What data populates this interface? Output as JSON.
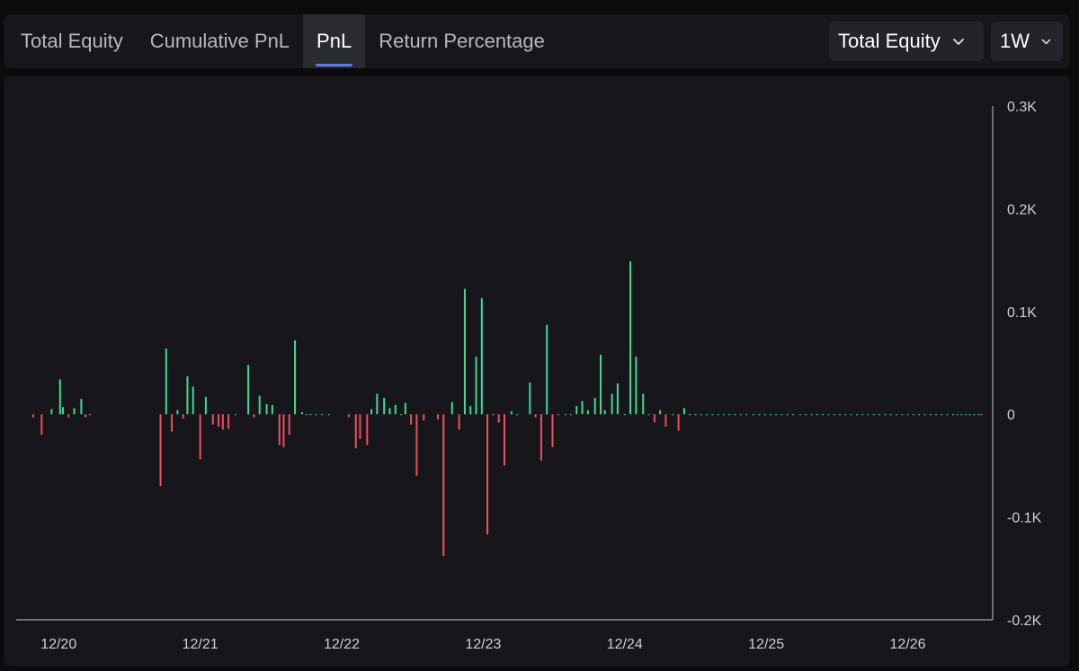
{
  "tabs": [
    {
      "label": "Total Equity",
      "active": false
    },
    {
      "label": "Cumulative PnL",
      "active": false
    },
    {
      "label": "PnL",
      "active": true
    },
    {
      "label": "Return Percentage",
      "active": false
    }
  ],
  "dropdowns": {
    "metric": {
      "value": "Total Equity",
      "icon": "chevron-down-icon"
    },
    "range": {
      "value": "1W",
      "icon": "chevron-down-icon"
    }
  },
  "colors": {
    "positive": "#3ddc97",
    "negative": "#f0505f",
    "accent": "#5b7cf0"
  },
  "chart_data": {
    "type": "bar",
    "ylim": [
      -0.2,
      0.3
    ],
    "ytick_values": [
      0.3,
      0.2,
      0.1,
      0,
      -0.1,
      -0.2
    ],
    "ytick_labels": [
      "0.3K",
      "0.2K",
      "0.1K",
      "0",
      "-0.1K",
      "-0.2K"
    ],
    "xtick_labels": [
      "12/20",
      "12/21",
      "12/22",
      "12/23",
      "12/24",
      "12/25",
      "12/26"
    ],
    "xlim_days": [
      19.7,
      26.6
    ],
    "series": [
      {
        "x": [
          19.82,
          19.88,
          19.95,
          20.01,
          20.03,
          20.07,
          20.11,
          20.16,
          20.19,
          20.22,
          20.72,
          20.76,
          20.8,
          20.84,
          20.88,
          20.91,
          20.95,
          21.0,
          21.04,
          21.09,
          21.13,
          21.16,
          21.2,
          21.25,
          21.34,
          21.38,
          21.42,
          21.47,
          21.51,
          21.56,
          21.59,
          21.63,
          21.67,
          21.72,
          21.75,
          21.78,
          21.82,
          21.86,
          21.91,
          22.05,
          22.1,
          22.13,
          22.18,
          22.21,
          22.25,
          22.3,
          22.34,
          22.38,
          22.42,
          22.45,
          22.49,
          22.53,
          22.58,
          22.68,
          22.72,
          22.78,
          22.83,
          22.87,
          22.91,
          22.95,
          22.99,
          23.03,
          23.07,
          23.11,
          23.15,
          23.2,
          23.24,
          23.33,
          23.37,
          23.41,
          23.45,
          23.49,
          23.53,
          23.58,
          23.62,
          23.66,
          23.7,
          23.74,
          23.79,
          23.83,
          23.86,
          23.91,
          23.95,
          24.0,
          24.04,
          24.08,
          24.13,
          24.17,
          24.21,
          24.25,
          24.29,
          24.34,
          24.38,
          24.42,
          24.46,
          24.5,
          24.54,
          24.58,
          24.62,
          24.66,
          24.7,
          24.74,
          24.78,
          24.82,
          24.86,
          24.91,
          24.95,
          24.99,
          25.03,
          25.07,
          25.11,
          25.15,
          25.19,
          25.24,
          25.28,
          25.32,
          25.36,
          25.4,
          25.44,
          25.48,
          25.52,
          25.56,
          25.6,
          25.64,
          25.68,
          25.72,
          25.76,
          25.8,
          25.84,
          25.88,
          25.92,
          25.96,
          26.0,
          26.04,
          26.08,
          26.12,
          26.16,
          26.2,
          26.24,
          26.28,
          26.32,
          26.35,
          26.38,
          26.41,
          26.44,
          26.47,
          26.5,
          26.52
        ],
        "values": [
          -0.003,
          -0.02,
          0.005,
          0.034,
          0.007,
          -0.003,
          0.006,
          0.015,
          -0.003,
          0.0,
          -0.07,
          0.064,
          -0.017,
          0.004,
          -0.004,
          0.037,
          0.027,
          -0.044,
          0.017,
          -0.01,
          -0.012,
          -0.015,
          -0.014,
          0.0,
          0.048,
          -0.003,
          0.018,
          0.01,
          0.009,
          -0.03,
          -0.032,
          -0.02,
          0.072,
          0.002,
          0.0,
          0.0,
          0.0,
          0.0,
          0.0,
          -0.003,
          -0.033,
          -0.024,
          -0.03,
          0.005,
          0.02,
          0.016,
          0.006,
          0.009,
          0.0,
          0.011,
          -0.01,
          -0.06,
          -0.006,
          -0.005,
          -0.138,
          0.012,
          -0.015,
          0.122,
          0.008,
          0.056,
          0.113,
          -0.117,
          0.0,
          -0.008,
          -0.05,
          0.003,
          0.0,
          0.031,
          -0.003,
          -0.045,
          0.087,
          -0.032,
          0.0,
          0.0,
          0.0,
          0.008,
          0.013,
          0.004,
          0.016,
          0.058,
          0.004,
          0.02,
          0.03,
          0.0,
          0.149,
          0.056,
          0.02,
          0.0,
          -0.008,
          0.004,
          -0.012,
          0.0,
          -0.016,
          0.006,
          0.0,
          0.0,
          0.0,
          0.0,
          0.0,
          0.0,
          0.0,
          0.0,
          0.0,
          0.0,
          0.0,
          0.0,
          0.0,
          0.0,
          0.0,
          0.0,
          0.0,
          0.0,
          0.0,
          0.0,
          0.0,
          0.0,
          0.0,
          0.0,
          0.0,
          0.0,
          0.0,
          0.0,
          0.0,
          0.0,
          0.0,
          0.0,
          0.0,
          0.0,
          0.0,
          0.0,
          0.0,
          0.0,
          0.0,
          0.0,
          0.0,
          0.0,
          0.0,
          0.0,
          0.0,
          0.0,
          0.0,
          0.0,
          0.0,
          0.0,
          0.0,
          0.0,
          0.0,
          0.0
        ]
      }
    ]
  }
}
